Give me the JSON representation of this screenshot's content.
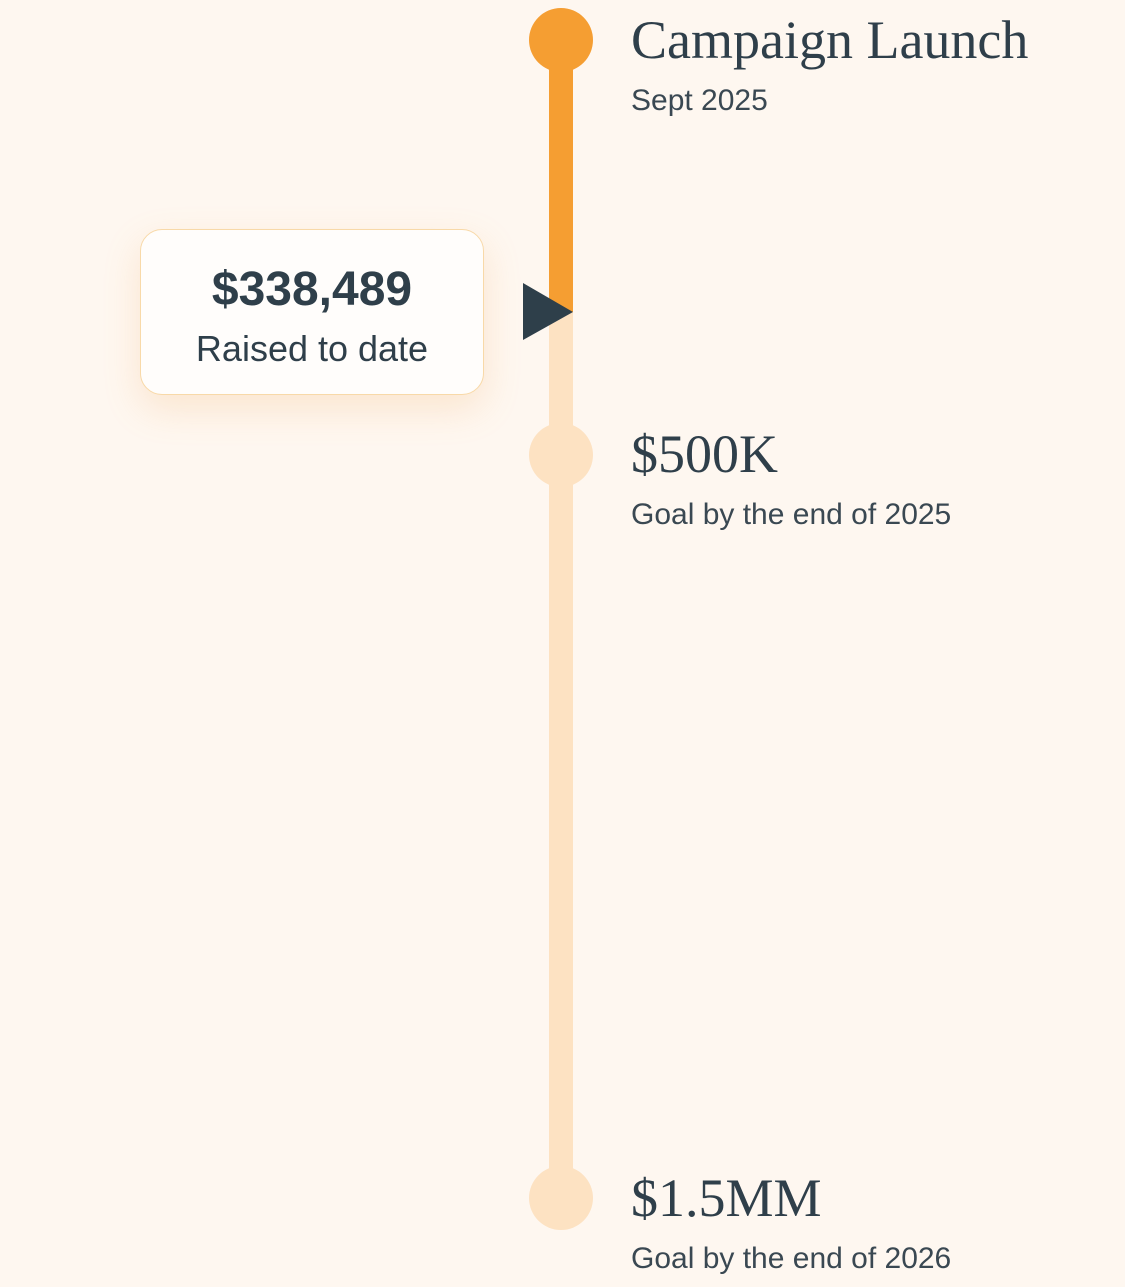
{
  "progress": {
    "amount": "$338,489",
    "label": "Raised to date"
  },
  "milestones": [
    {
      "title": "Campaign Launch",
      "subtitle": "Sept 2025"
    },
    {
      "title": "$500K",
      "subtitle": "Goal by the end of 2025"
    },
    {
      "title": "$1.5MM",
      "subtitle": "Goal by the end of 2026"
    }
  ]
}
